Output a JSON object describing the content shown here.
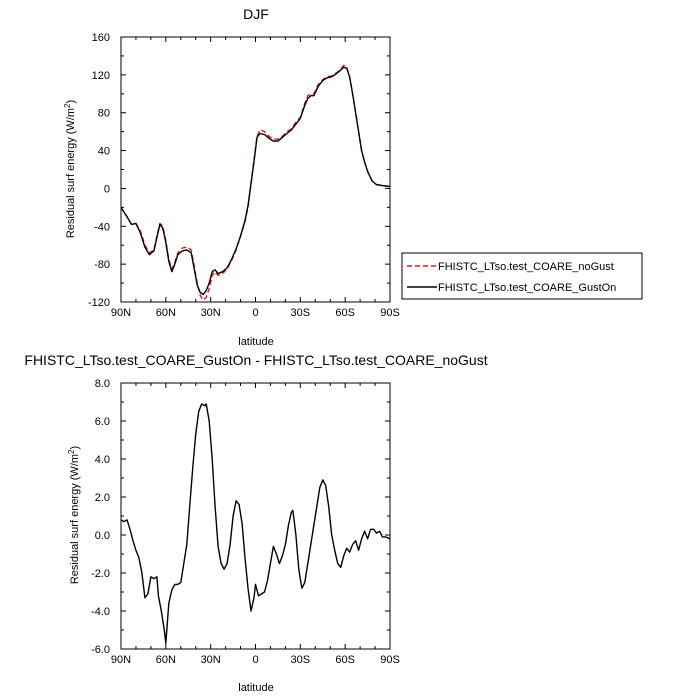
{
  "chart_data": [
    {
      "type": "line",
      "title": "DJF",
      "xlabel": "latitude",
      "ylabel_main": "Residual surf energy (W/m",
      "ylabel_sup": "2",
      "ylabel_close": ")",
      "x_ticks": [
        -90,
        -60,
        -30,
        0,
        30,
        60,
        90
      ],
      "x_tick_labels": [
        "90N",
        "60N",
        "30N",
        "0",
        "30S",
        "60S",
        "90S"
      ],
      "xlim": [
        -90,
        90
      ],
      "ylim": [
        -120,
        160
      ],
      "y_ticks": [
        -120,
        -80,
        -40,
        0,
        40,
        80,
        120,
        160
      ],
      "y_tick_labels": [
        "-120",
        "-80",
        "-40",
        "0",
        "40",
        "80",
        "120",
        "160"
      ],
      "legend_position": "right",
      "series": [
        {
          "name": "FHISTC_LTso.test_COARE_noGust",
          "color": "#e8121b",
          "dashed": true,
          "points": [
            [
              -90,
              -20
            ],
            [
              -86,
              -30
            ],
            [
              -83,
              -38
            ],
            [
              -80,
              -37
            ],
            [
              -77,
              -45
            ],
            [
              -74,
              -60
            ],
            [
              -71,
              -68
            ],
            [
              -68,
              -65
            ],
            [
              -66,
              -50
            ],
            [
              -64,
              -37
            ],
            [
              -62,
              -40
            ],
            [
              -60,
              -55
            ],
            [
              -58,
              -75
            ],
            [
              -56,
              -85
            ],
            [
              -54,
              -78
            ],
            [
              -52,
              -68
            ],
            [
              -49,
              -63
            ],
            [
              -46,
              -62
            ],
            [
              -43,
              -65
            ],
            [
              -41,
              -82
            ],
            [
              -39,
              -100
            ],
            [
              -37,
              -113
            ],
            [
              -35,
              -118
            ],
            [
              -33,
              -115
            ],
            [
              -31,
              -106
            ],
            [
              -29,
              -92
            ],
            [
              -27,
              -88
            ],
            [
              -25,
              -92
            ],
            [
              -22,
              -90
            ],
            [
              -19,
              -85
            ],
            [
              -16,
              -76
            ],
            [
              -13,
              -65
            ],
            [
              -10,
              -50
            ],
            [
              -7,
              -35
            ],
            [
              -5,
              -20
            ],
            [
              -3,
              5
            ],
            [
              -1,
              30
            ],
            [
              1,
              55
            ],
            [
              3,
              62
            ],
            [
              6,
              60
            ],
            [
              9,
              55
            ],
            [
              12,
              52
            ],
            [
              15,
              52
            ],
            [
              18,
              55
            ],
            [
              21,
              60
            ],
            [
              24,
              63
            ],
            [
              27,
              70
            ],
            [
              30,
              75
            ],
            [
              33,
              90
            ],
            [
              35,
              98
            ],
            [
              37,
              100
            ],
            [
              39,
              100
            ],
            [
              42,
              110
            ],
            [
              45,
              115
            ],
            [
              48,
              118
            ],
            [
              51,
              119
            ],
            [
              54,
              122
            ],
            [
              57,
              126
            ],
            [
              59,
              130
            ],
            [
              61,
              128
            ],
            [
              63,
              118
            ],
            [
              65,
              100
            ],
            [
              67,
              80
            ],
            [
              69,
              60
            ],
            [
              71,
              40
            ],
            [
              73,
              28
            ],
            [
              75,
              18
            ],
            [
              78,
              8
            ],
            [
              81,
              4
            ],
            [
              85,
              3
            ],
            [
              90,
              2
            ]
          ]
        },
        {
          "name": "FHISTC_LTso.test_COARE_GustOn",
          "color": "#000000",
          "dashed": false,
          "points": [
            [
              -90,
              -20
            ],
            [
              -86,
              -30
            ],
            [
              -83,
              -38
            ],
            [
              -80,
              -37
            ],
            [
              -77,
              -47
            ],
            [
              -74,
              -62
            ],
            [
              -71,
              -70
            ],
            [
              -68,
              -66
            ],
            [
              -66,
              -52
            ],
            [
              -64,
              -38
            ],
            [
              -62,
              -42
            ],
            [
              -60,
              -57
            ],
            [
              -58,
              -77
            ],
            [
              -56,
              -88
            ],
            [
              -54,
              -80
            ],
            [
              -52,
              -70
            ],
            [
              -49,
              -66
            ],
            [
              -46,
              -65
            ],
            [
              -43,
              -68
            ],
            [
              -41,
              -85
            ],
            [
              -39,
              -102
            ],
            [
              -37,
              -110
            ],
            [
              -35,
              -112
            ],
            [
              -33,
              -108
            ],
            [
              -31,
              -100
            ],
            [
              -29,
              -88
            ],
            [
              -27,
              -86
            ],
            [
              -25,
              -90
            ],
            [
              -22,
              -88
            ],
            [
              -19,
              -84
            ],
            [
              -16,
              -75
            ],
            [
              -13,
              -64
            ],
            [
              -10,
              -50
            ],
            [
              -7,
              -34
            ],
            [
              -5,
              -18
            ],
            [
              -3,
              5
            ],
            [
              -1,
              28
            ],
            [
              1,
              54
            ],
            [
              3,
              58
            ],
            [
              6,
              57
            ],
            [
              9,
              53
            ],
            [
              12,
              50
            ],
            [
              15,
              50
            ],
            [
              18,
              54
            ],
            [
              21,
              58
            ],
            [
              24,
              62
            ],
            [
              27,
              68
            ],
            [
              30,
              74
            ],
            [
              33,
              88
            ],
            [
              35,
              95
            ],
            [
              37,
              98
            ],
            [
              39,
              98
            ],
            [
              42,
              108
            ],
            [
              45,
              114
            ],
            [
              48,
              117
            ],
            [
              51,
              118
            ],
            [
              54,
              121
            ],
            [
              57,
              125
            ],
            [
              59,
              128
            ],
            [
              61,
              127
            ],
            [
              63,
              118
            ],
            [
              65,
              100
            ],
            [
              67,
              80
            ],
            [
              69,
              60
            ],
            [
              71,
              40
            ],
            [
              73,
              28
            ],
            [
              75,
              18
            ],
            [
              78,
              8
            ],
            [
              81,
              4
            ],
            [
              85,
              3
            ],
            [
              90,
              2
            ]
          ]
        }
      ]
    },
    {
      "type": "line",
      "title": "FHISTC_LTso.test_COARE_GustOn - FHISTC_LTso.test_COARE_noGust",
      "xlabel": "latitude",
      "ylabel_main": "Residual surf energy (W/m",
      "ylabel_sup": "2",
      "ylabel_close": ")",
      "x_ticks": [
        -90,
        -60,
        -30,
        0,
        30,
        60,
        90
      ],
      "x_tick_labels": [
        "90N",
        "60N",
        "30N",
        "0",
        "30S",
        "60S",
        "90S"
      ],
      "xlim": [
        -90,
        90
      ],
      "ylim": [
        -6,
        8
      ],
      "y_ticks": [
        -6,
        -4,
        -2,
        0,
        2,
        4,
        6,
        8
      ],
      "y_tick_labels": [
        "-6.0",
        "-4.0",
        "-2.0",
        "0.0",
        "2.0",
        "4.0",
        "6.0",
        "8.0"
      ],
      "series": [
        {
          "color": "#000000",
          "dashed": false,
          "points": [
            [
              -90,
              0.8
            ],
            [
              -88,
              0.7
            ],
            [
              -86,
              0.8
            ],
            [
              -84,
              0.3
            ],
            [
              -82,
              -0.3
            ],
            [
              -80,
              -0.8
            ],
            [
              -78,
              -1.2
            ],
            [
              -76,
              -2.0
            ],
            [
              -74,
              -3.3
            ],
            [
              -72,
              -3.1
            ],
            [
              -70,
              -2.2
            ],
            [
              -68,
              -2.3
            ],
            [
              -66,
              -2.2
            ],
            [
              -65,
              -3.2
            ],
            [
              -63,
              -4.0
            ],
            [
              -61,
              -5.0
            ],
            [
              -60,
              -5.7
            ],
            [
              -58,
              -3.6
            ],
            [
              -56,
              -2.9
            ],
            [
              -54,
              -2.6
            ],
            [
              -52,
              -2.6
            ],
            [
              -50,
              -2.5
            ],
            [
              -48,
              -1.5
            ],
            [
              -46,
              -0.5
            ],
            [
              -44,
              1.5
            ],
            [
              -42,
              3.5
            ],
            [
              -40,
              5.3
            ],
            [
              -38,
              6.5
            ],
            [
              -36,
              6.9
            ],
            [
              -34,
              6.8
            ],
            [
              -33,
              6.9
            ],
            [
              -31,
              6.0
            ],
            [
              -29,
              4.0
            ],
            [
              -27,
              1.5
            ],
            [
              -25,
              -0.6
            ],
            [
              -23,
              -1.5
            ],
            [
              -21,
              -1.8
            ],
            [
              -19,
              -1.5
            ],
            [
              -17,
              -0.5
            ],
            [
              -15,
              1.0
            ],
            [
              -13,
              1.8
            ],
            [
              -11,
              1.6
            ],
            [
              -9,
              0.6
            ],
            [
              -7,
              -1.2
            ],
            [
              -5,
              -2.8
            ],
            [
              -3,
              -4.0
            ],
            [
              -1,
              -3.3
            ],
            [
              0,
              -2.6
            ],
            [
              2,
              -3.2
            ],
            [
              4,
              -3.1
            ],
            [
              6,
              -3.0
            ],
            [
              8,
              -2.4
            ],
            [
              10,
              -1.5
            ],
            [
              12,
              -0.6
            ],
            [
              14,
              -1.0
            ],
            [
              16,
              -1.5
            ],
            [
              18,
              -1.1
            ],
            [
              20,
              -0.5
            ],
            [
              22,
              0.5
            ],
            [
              24,
              1.2
            ],
            [
              25,
              1.3
            ],
            [
              27,
              0.0
            ],
            [
              29,
              -1.8
            ],
            [
              31,
              -2.8
            ],
            [
              33,
              -2.5
            ],
            [
              35,
              -1.5
            ],
            [
              37,
              -0.5
            ],
            [
              39,
              0.5
            ],
            [
              41,
              1.5
            ],
            [
              43,
              2.5
            ],
            [
              45,
              2.9
            ],
            [
              47,
              2.6
            ],
            [
              49,
              1.5
            ],
            [
              51,
              0.0
            ],
            [
              53,
              -0.8
            ],
            [
              55,
              -1.5
            ],
            [
              57,
              -1.7
            ],
            [
              59,
              -1.1
            ],
            [
              61,
              -0.7
            ],
            [
              63,
              -0.9
            ],
            [
              65,
              -0.5
            ],
            [
              67,
              -0.3
            ],
            [
              69,
              -0.8
            ],
            [
              71,
              -0.2
            ],
            [
              73,
              0.2
            ],
            [
              75,
              -0.2
            ],
            [
              77,
              0.3
            ],
            [
              79,
              0.3
            ],
            [
              81,
              0.1
            ],
            [
              83,
              0.2
            ],
            [
              85,
              -0.1
            ],
            [
              87,
              -0.1
            ],
            [
              90,
              -0.2
            ]
          ]
        }
      ]
    }
  ]
}
